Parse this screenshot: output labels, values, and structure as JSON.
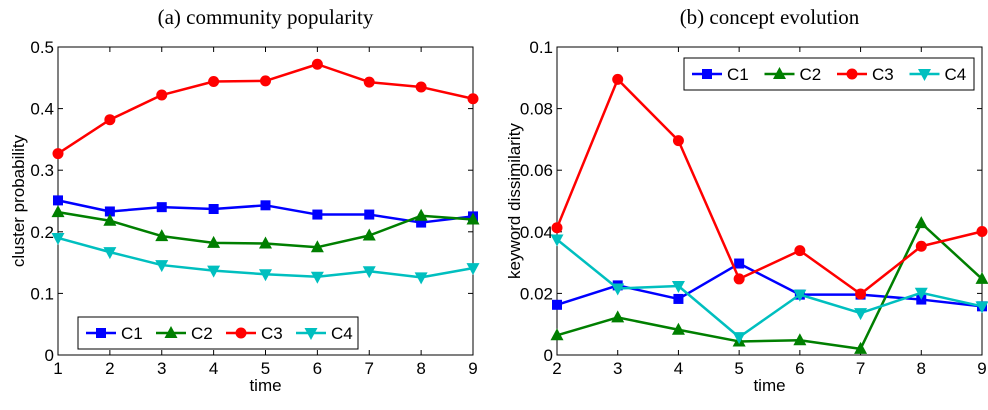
{
  "chart_data": [
    {
      "type": "line",
      "title": "(a) community popularity",
      "xlabel": "time",
      "ylabel": "cluster probability",
      "x": [
        1,
        2,
        3,
        4,
        5,
        6,
        7,
        8,
        9
      ],
      "xlim": [
        1,
        9
      ],
      "ylim": [
        0,
        0.5
      ],
      "xticks": [
        "1",
        "2",
        "3",
        "4",
        "5",
        "6",
        "7",
        "8",
        "9"
      ],
      "yticks": [
        "0",
        "0.1",
        "0.2",
        "0.3",
        "0.4",
        "0.5"
      ],
      "grid": false,
      "legend": {
        "placement": "bottom",
        "orientation": "horizontal"
      },
      "series": [
        {
          "name": "C1",
          "color": "#0000ff",
          "marker": "square",
          "values": [
            0.251,
            0.233,
            0.24,
            0.237,
            0.243,
            0.228,
            0.228,
            0.215,
            0.225
          ]
        },
        {
          "name": "C2",
          "color": "#007f00",
          "marker": "triangle-up",
          "values": [
            0.232,
            0.218,
            0.193,
            0.182,
            0.181,
            0.175,
            0.194,
            0.226,
            0.22
          ]
        },
        {
          "name": "C3",
          "color": "#ff0000",
          "marker": "circle",
          "values": [
            0.327,
            0.382,
            0.422,
            0.444,
            0.445,
            0.472,
            0.443,
            0.435,
            0.416
          ]
        },
        {
          "name": "C4",
          "color": "#00bfbf",
          "marker": "triangle-down",
          "values": [
            0.19,
            0.167,
            0.146,
            0.137,
            0.131,
            0.127,
            0.136,
            0.126,
            0.141
          ]
        }
      ]
    },
    {
      "type": "line",
      "title": "(b) concept evolution",
      "xlabel": "time",
      "ylabel": "keyword dissimilarity",
      "x": [
        2,
        3,
        4,
        5,
        6,
        7,
        8,
        9
      ],
      "xlim": [
        2,
        9
      ],
      "ylim": [
        0,
        0.1
      ],
      "xticks": [
        "2",
        "3",
        "4",
        "5",
        "6",
        "7",
        "8",
        "9"
      ],
      "yticks": [
        "0",
        "0.02",
        "0.04",
        "0.06",
        "0.08",
        "0.1"
      ],
      "grid": false,
      "legend": {
        "placement": "top-right",
        "orientation": "horizontal"
      },
      "series": [
        {
          "name": "C1",
          "color": "#0000ff",
          "marker": "square",
          "values": [
            0.0163,
            0.0226,
            0.0182,
            0.0297,
            0.0196,
            0.0196,
            0.018,
            0.0158
          ]
        },
        {
          "name": "C2",
          "color": "#007f00",
          "marker": "triangle-up",
          "values": [
            0.0064,
            0.0122,
            0.0082,
            0.0044,
            0.0048,
            0.002,
            0.0428,
            0.0247
          ]
        },
        {
          "name": "C3",
          "color": "#ff0000",
          "marker": "circle",
          "values": [
            0.0413,
            0.0895,
            0.0696,
            0.0247,
            0.0339,
            0.0198,
            0.0353,
            0.0401
          ]
        },
        {
          "name": "C4",
          "color": "#00bfbf",
          "marker": "triangle-down",
          "values": [
            0.0375,
            0.0216,
            0.0224,
            0.0058,
            0.0196,
            0.0136,
            0.0202,
            0.0158
          ]
        }
      ]
    }
  ]
}
